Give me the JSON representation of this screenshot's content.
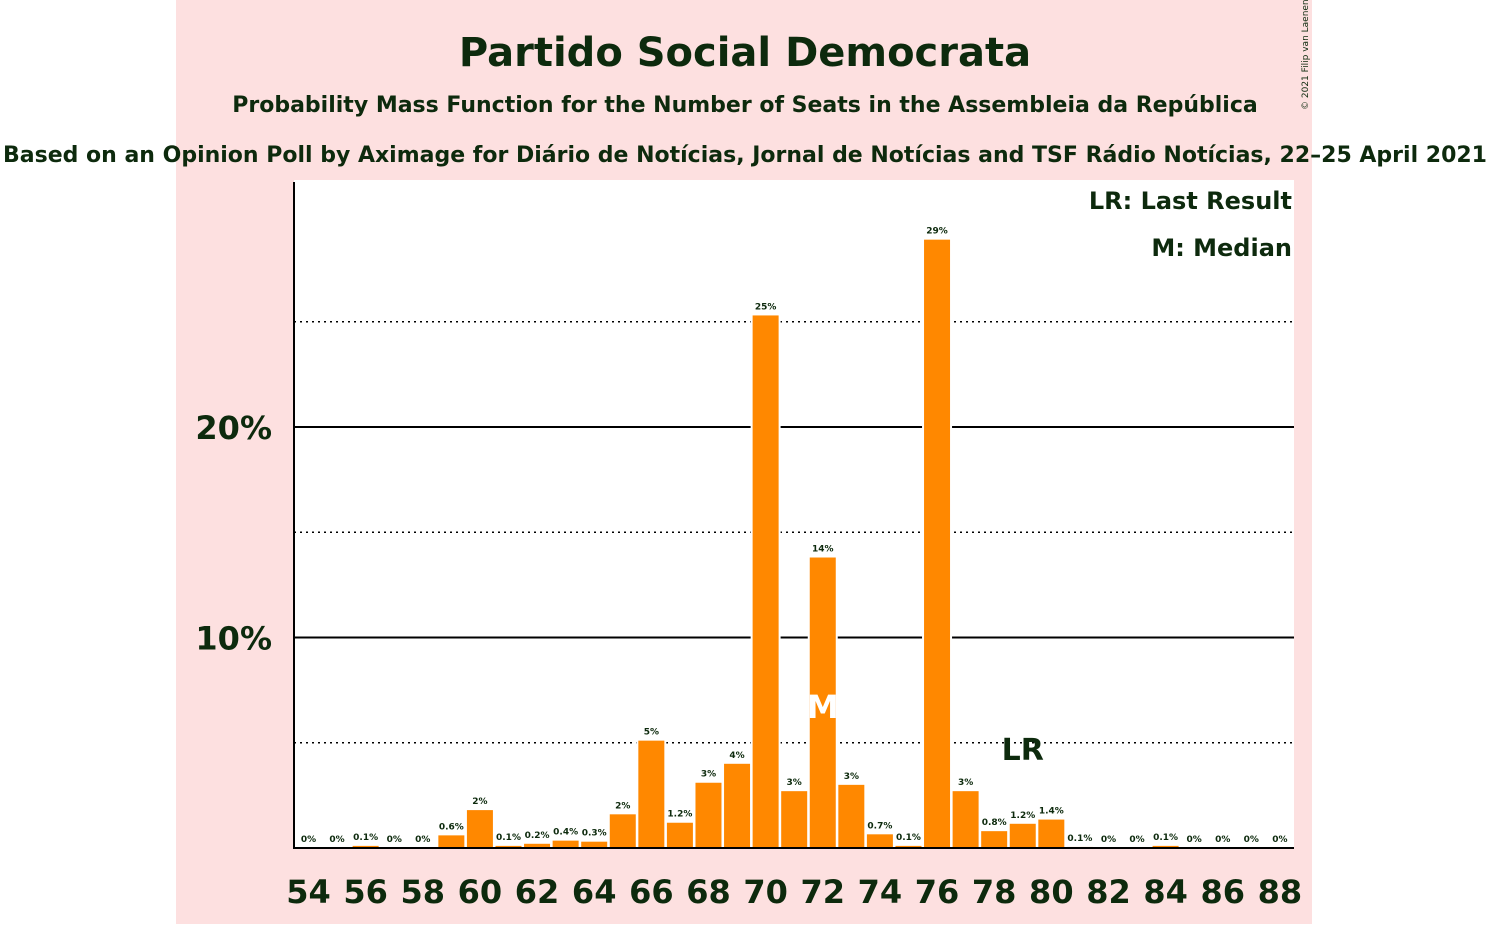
{
  "chart_data": {
    "type": "bar",
    "title": "Partido Social Democrata",
    "subtitle": "Probability Mass Function for the Number of Seats in the Assembleia da República",
    "source_line": "Based on an Opinion Poll by Aximage for Diário de Notícias, Jornal de Notícias and TSF Rádio Notícias, 22–25 April 2021",
    "copyright": "© 2021 Filip van Laenen",
    "legend": [
      "LR: Last Result",
      "M: Median"
    ],
    "legend_position": "top-right",
    "xlabel": "",
    "ylabel": "",
    "x_tick_labels": [
      "54",
      "56",
      "58",
      "60",
      "62",
      "64",
      "66",
      "68",
      "70",
      "72",
      "74",
      "76",
      "78",
      "80",
      "82",
      "84",
      "86",
      "88"
    ],
    "y_tick_labels": [
      "10%",
      "20%"
    ],
    "ylim": [
      0,
      31.5
    ],
    "grid": "solid major lines at 10% and 20%, dotted minor lines at 5%, 15%, 25%",
    "seats": [
      54,
      55,
      56,
      57,
      58,
      59,
      60,
      61,
      62,
      63,
      64,
      65,
      66,
      67,
      68,
      69,
      70,
      71,
      72,
      73,
      74,
      75,
      76,
      77,
      78,
      79,
      80,
      81,
      82,
      83,
      84,
      85,
      86,
      87,
      88
    ],
    "values": [
      0,
      0,
      0.1,
      0,
      0,
      0.6,
      1.8,
      0.1,
      0.2,
      0.35,
      0.3,
      1.6,
      5.1,
      1.2,
      3.1,
      4.0,
      25.3,
      2.7,
      13.8,
      3.0,
      0.65,
      0.1,
      28.9,
      2.7,
      0.8,
      1.15,
      1.35,
      0.05,
      0,
      0,
      0.1,
      0,
      0,
      0,
      0
    ],
    "data_labels": [
      "0%",
      "0%",
      "0.1%",
      "0%",
      "0%",
      "0.6%",
      "2%",
      "0.1%",
      "0.2%",
      "0.4%",
      "0.3%",
      "2%",
      "5%",
      "1.2%",
      "3%",
      "4%",
      "25%",
      "3%",
      "14%",
      "3%",
      "0.7%",
      "0.1%",
      "29%",
      "3%",
      "0.8%",
      "1.2%",
      "1.4%",
      "0.1%",
      "0%",
      "0%",
      "0.1%",
      "0%",
      "0%",
      "0%",
      "0%"
    ],
    "median_seat": 72,
    "median_label": "M",
    "last_result_seat": 79,
    "last_result_label": "LR",
    "colors": {
      "bar": "#ff8800",
      "side_band": "#fde0e0",
      "text": "#0d2a0d",
      "axis": "#000000",
      "median_marker": "#ffffff"
    }
  }
}
